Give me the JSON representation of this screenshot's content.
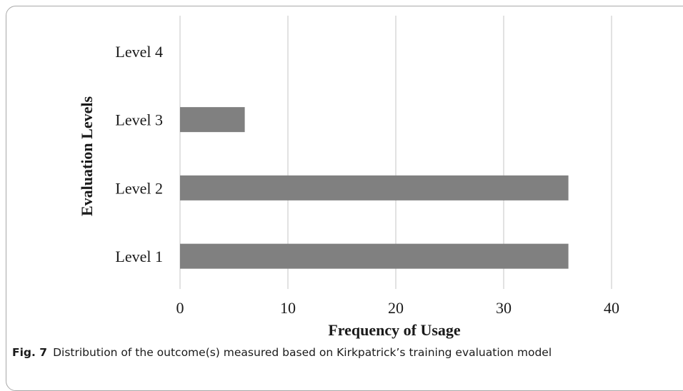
{
  "caption": {
    "label": "Fig. 7",
    "text": "Distribution of the outcome(s) measured based on Kirkpatrick’s training evaluation model"
  },
  "chart_data": {
    "type": "bar",
    "orientation": "horizontal",
    "categories": [
      "Level 1",
      "Level 2",
      "Level 3",
      "Level 4"
    ],
    "values": [
      36,
      36,
      6,
      0
    ],
    "xlabel": "Frequency of Usage",
    "ylabel": "Evaluation Levels",
    "xlim": [
      0,
      40
    ],
    "xticks": [
      "0",
      "10",
      "20",
      "30",
      "40"
    ],
    "grid": "vertical",
    "bar_color": "#808080",
    "grid_color": "#d9d9d9"
  }
}
